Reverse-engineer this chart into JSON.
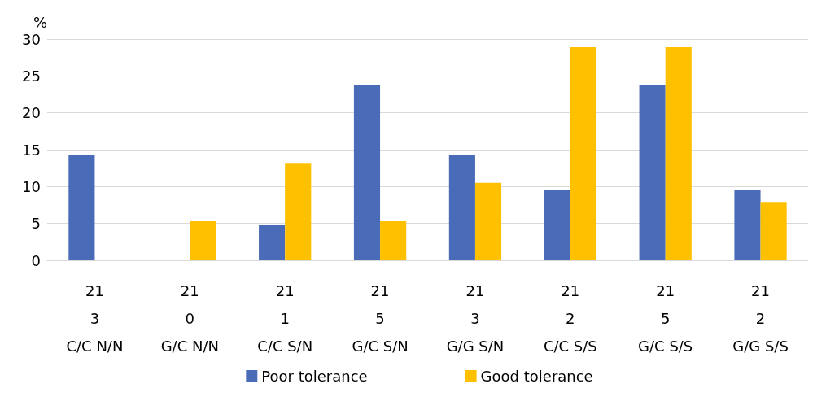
{
  "chart_data": {
    "type": "bar",
    "ylabel": "%",
    "categories": [
      "21\n3\nC/C N/N",
      "21\n0\nG/C N/N",
      "21\n1\nC/C S/N",
      "21\n5\nG/C S/N",
      "21\n3\nG/G S/N",
      "21\n2\nC/C S/S",
      "21\n5\nG/C S/S",
      "21\n2\nG/G S/S"
    ],
    "series": [
      {
        "name": "Poor tolerance",
        "color": "#4a6bb8",
        "values": [
          14.3,
          0,
          4.8,
          23.8,
          14.3,
          9.5,
          23.8,
          9.5
        ]
      },
      {
        "name": "Good tolerance",
        "color": "#ffc000",
        "values": [
          0,
          5.3,
          13.2,
          5.3,
          10.5,
          28.9,
          28.9,
          7.9
        ]
      }
    ],
    "ylim": [
      0,
      30
    ],
    "yticks": [
      0,
      5,
      10,
      15,
      20,
      25,
      30
    ],
    "grid": "y",
    "legend": "bottom"
  }
}
